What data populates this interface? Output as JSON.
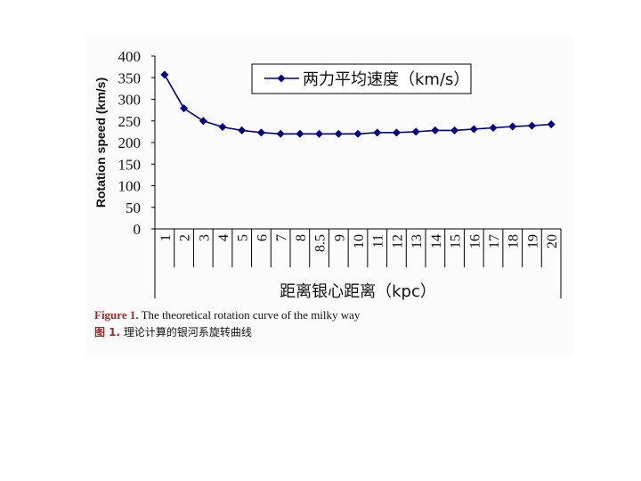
{
  "chart_data": {
    "type": "line",
    "ylabel": "Rotation speed (km/s)",
    "xlabel": "距离银心距离（kpc）",
    "categories": [
      "1",
      "2",
      "3",
      "4",
      "5",
      "6",
      "7",
      "8",
      "8.5",
      "9",
      "10",
      "11",
      "12",
      "13",
      "14",
      "15",
      "16",
      "17",
      "18",
      "19",
      "20"
    ],
    "series": [
      {
        "name": "两力平均速度（km/s）",
        "values": [
          357,
          279,
          250,
          236,
          228,
          223,
          220,
          220,
          220,
          220,
          220,
          223,
          223,
          225,
          228,
          228,
          231,
          234,
          237,
          239,
          242
        ],
        "color": "#000080"
      }
    ],
    "ylim": [
      0,
      400
    ],
    "yticks": [
      0,
      50,
      100,
      150,
      200,
      250,
      300,
      350,
      400
    ],
    "grid": false,
    "legend": "top-right",
    "marker": "diamond"
  },
  "caption": {
    "en_label": "Figure 1.",
    "en_text": " The theoretical rotation curve of the milky way",
    "zh_label": "图 1.",
    "zh_text": " 理论计算的银河系旋转曲线"
  }
}
